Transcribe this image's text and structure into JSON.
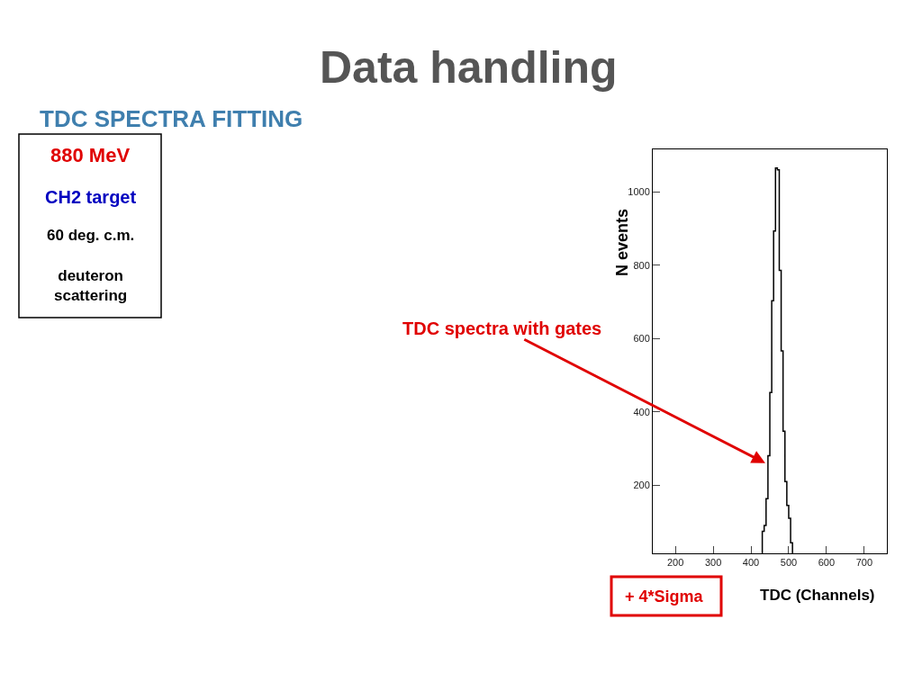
{
  "chart_data": {
    "type": "histogram",
    "title": "Data handling",
    "subtitle": "TDC SPECTRA FITTING",
    "xlabel": "TDC (Channels)",
    "ylabel": "N events",
    "annotations": [
      "880 MeV",
      "CH2 target",
      "60 deg. c.m.",
      "deuteron scattering",
      "+ 4*Sigma",
      {
        "text": "TDC spectra with gates",
        "x": 438,
        "y": 260
      }
    ],
    "bins": [
      430,
      435,
      440,
      445,
      450,
      455,
      460,
      465,
      470,
      475,
      480,
      485,
      490,
      495,
      500,
      505,
      510
    ],
    "values": [
      74,
      90,
      163,
      280,
      453,
      703,
      893,
      1065,
      1060,
      786,
      566,
      347,
      210,
      145,
      110,
      43
    ],
    "color": "#000000",
    "xlim": [
      140,
      760
    ],
    "ylim": [
      14,
      1116
    ],
    "xticks": [
      200,
      300,
      400,
      500,
      600,
      700
    ],
    "yticks": [
      200,
      400,
      600,
      800,
      1000
    ]
  }
}
